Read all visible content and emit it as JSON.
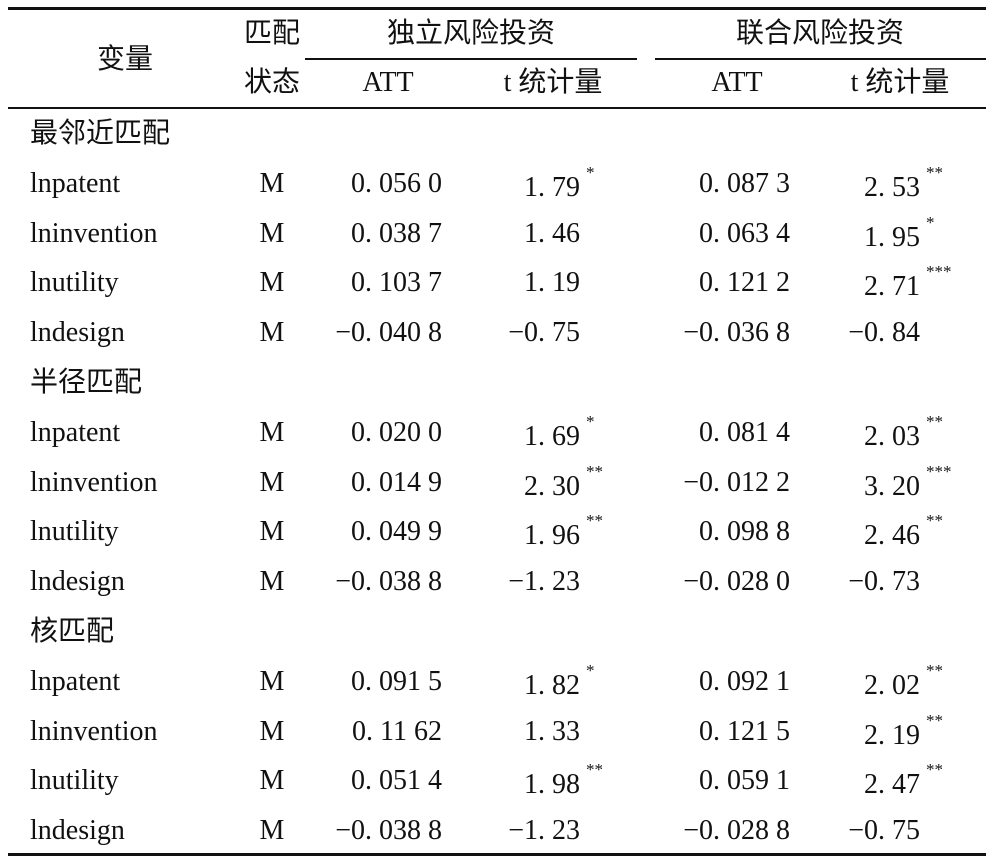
{
  "table": {
    "header": {
      "variable": "变量",
      "match_top": "匹配",
      "match_bottom": "状态",
      "group1": "独立风险投资",
      "group2": "联合风险投资",
      "att1": "ATT",
      "t1": "t 统计量",
      "att2": "ATT",
      "t2": "t 统计量"
    },
    "sections": [
      {
        "title": "最邻近匹配",
        "rows": [
          {
            "variable": "lnpatent",
            "match": "M",
            "att1": "0. 056 0",
            "t1": "1. 79",
            "sig1": "*",
            "att2": "0. 087 3",
            "t2": "2. 53",
            "sig2": "**"
          },
          {
            "variable": "lninvention",
            "match": "M",
            "att1": "0. 038 7",
            "t1": "1. 46",
            "att2": "0. 063 4",
            "t2": "1. 95",
            "sig2": "*"
          },
          {
            "variable": "lnutility",
            "match": "M",
            "att1": "0. 103 7",
            "t1": "1. 19",
            "att2": "0. 121 2",
            "t2": "2. 71",
            "sig2": "***"
          },
          {
            "variable": "lndesign",
            "match": "M",
            "att1": "−0. 040 8",
            "t1": "−0. 75",
            "att2": "−0. 036 8",
            "t2": "−0. 84"
          }
        ]
      },
      {
        "title": "半径匹配",
        "rows": [
          {
            "variable": "lnpatent",
            "match": "M",
            "att1": "0. 020 0",
            "t1": "1. 69",
            "sig1": "*",
            "att2": "0. 081 4",
            "t2": "2. 03",
            "sig2": "**"
          },
          {
            "variable": "lninvention",
            "match": "M",
            "att1": "0. 014 9",
            "t1": "2. 30",
            "sig1": "**",
            "att2": "−0. 012 2",
            "t2": "3. 20",
            "sig2": "***"
          },
          {
            "variable": "lnutility",
            "match": "M",
            "att1": "0. 049 9",
            "t1": "1. 96",
            "sig1": "**",
            "att2": "0. 098 8",
            "t2": "2. 46",
            "sig2": "**"
          },
          {
            "variable": "lndesign",
            "match": "M",
            "att1": "−0. 038 8",
            "t1": "−1. 23",
            "att2": "−0. 028 0",
            "t2": "−0. 73"
          }
        ]
      },
      {
        "title": "核匹配",
        "rows": [
          {
            "variable": "lnpatent",
            "match": "M",
            "att1": "0. 091 5",
            "t1": "1. 82",
            "sig1": "*",
            "att2": "0. 092 1",
            "t2": "2. 02",
            "sig2": "**"
          },
          {
            "variable": "lninvention",
            "match": "M",
            "att1": "0. 11 62",
            "t1": "1. 33",
            "att2": "0. 121 5",
            "t2": "2. 19",
            "sig2": "**"
          },
          {
            "variable": "lnutility",
            "match": "M",
            "att1": "0. 051 4",
            "t1": "1. 98",
            "sig1": "**",
            "att2": "0. 059 1",
            "t2": "2. 47",
            "sig2": "**"
          },
          {
            "variable": "lndesign",
            "match": "M",
            "att1": "−0. 038 8",
            "t1": "−1. 23",
            "att2": "−0. 028 8",
            "t2": "−0. 75"
          }
        ]
      }
    ]
  }
}
